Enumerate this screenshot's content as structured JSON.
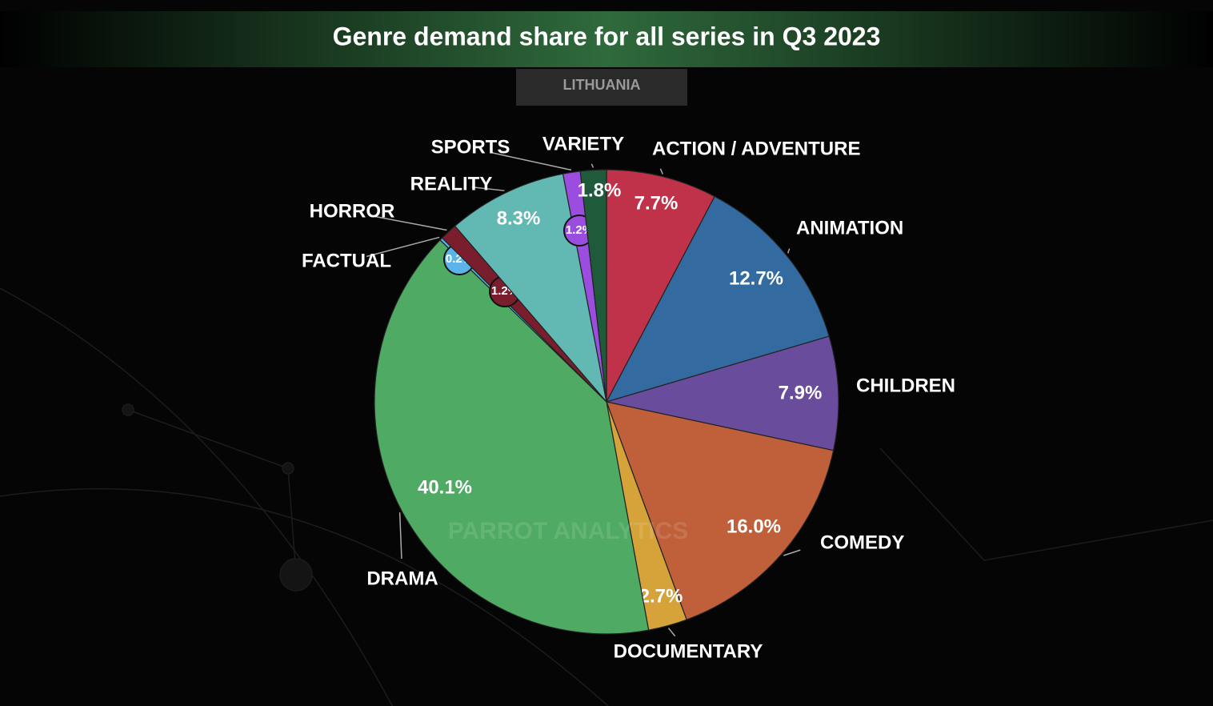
{
  "chart_data": {
    "type": "pie",
    "title": "Genre demand share for all series in Q3 2023",
    "subtitle": "LITHUANIA",
    "watermark": "PARROT ANALYTICS",
    "categories": [
      "ACTION / ADVENTURE",
      "ANIMATION",
      "CHILDREN",
      "COMEDY",
      "DOCUMENTARY",
      "DRAMA",
      "FACTUAL",
      "HORROR",
      "REALITY",
      "SPORTS",
      "VARIETY"
    ],
    "values": [
      7.7,
      12.7,
      7.9,
      16.0,
      2.7,
      40.1,
      0.2,
      1.2,
      8.3,
      1.2,
      1.8
    ],
    "value_labels": [
      "7.7%",
      "12.7%",
      "7.9%",
      "16.0%",
      "2.7%",
      "40.1%",
      "0.2%",
      "1.2%",
      "8.3%",
      "1.2%",
      "1.8%"
    ],
    "colors": [
      "#c0314a",
      "#336ba1",
      "#6a4c9c",
      "#c0603b",
      "#d6a23a",
      "#4faa63",
      "#5ab4e8",
      "#7a1e2e",
      "#62b8b2",
      "#9b4de0",
      "#1f5a3a"
    ]
  }
}
